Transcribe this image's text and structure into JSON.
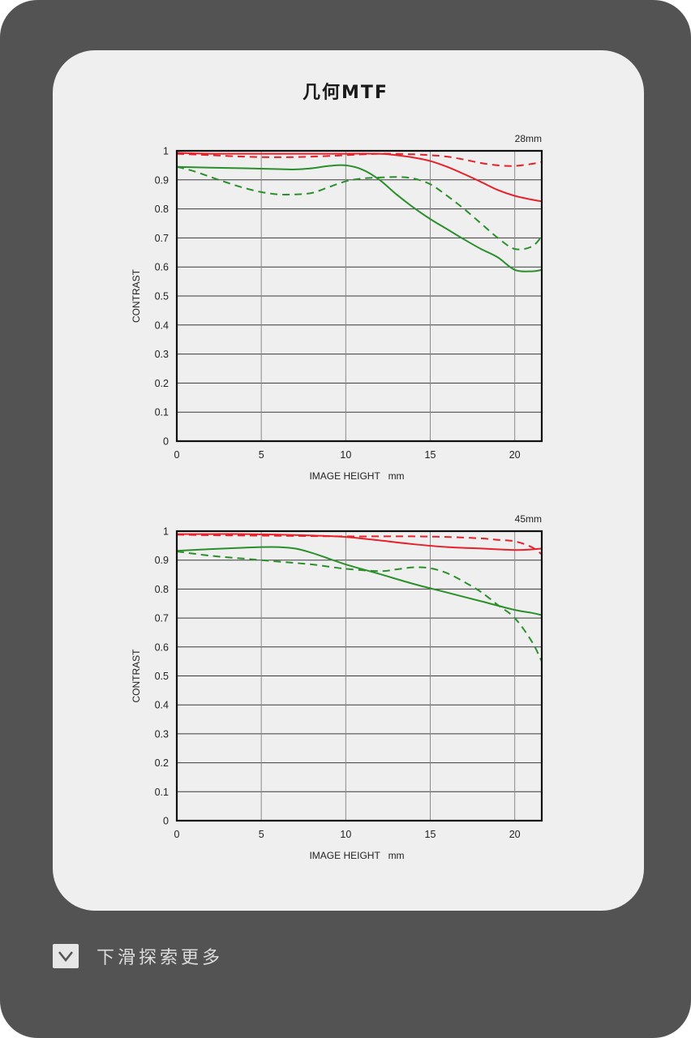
{
  "page_title": "几何MTF",
  "footer": {
    "label": "下滑探索更多",
    "icon": "chevron-down-icon"
  },
  "colors": {
    "sagittal_or_low": "#e8202a",
    "green": "#2b8f2b",
    "frame": "#535353",
    "card": "#efefef"
  },
  "chart_data": [
    {
      "type": "line",
      "title": "28mm",
      "xlabel": "IMAGE HEIGHT   mm",
      "ylabel": "CONTRAST",
      "xlim": [
        0,
        21.6
      ],
      "ylim": [
        0,
        1
      ],
      "xticks": [
        "0",
        "5",
        "10",
        "15",
        "20"
      ],
      "yticks": [
        "0",
        "0.1",
        "0.2",
        "0.3",
        "0.4",
        "0.5",
        "0.6",
        "0.7",
        "0.8",
        "0.9",
        "1"
      ],
      "grid": true,
      "series": [
        {
          "color": "#e8202a",
          "dash": false,
          "x": [
            0,
            2,
            4,
            6,
            8,
            10,
            12,
            13,
            14,
            15,
            16,
            17,
            18,
            19,
            20,
            21,
            21.6
          ],
          "y": [
            0.993,
            0.99,
            0.99,
            0.99,
            0.99,
            0.99,
            0.99,
            0.985,
            0.977,
            0.965,
            0.945,
            0.92,
            0.893,
            0.865,
            0.845,
            0.832,
            0.826
          ]
        },
        {
          "color": "#e8202a",
          "dash": true,
          "x": [
            0,
            2,
            4,
            6,
            8,
            10,
            12,
            14,
            15,
            16,
            17,
            18,
            19,
            20,
            21,
            21.6
          ],
          "y": [
            0.99,
            0.985,
            0.98,
            0.978,
            0.98,
            0.985,
            0.99,
            0.988,
            0.985,
            0.98,
            0.97,
            0.958,
            0.95,
            0.948,
            0.955,
            0.962
          ]
        },
        {
          "color": "#2b8f2b",
          "dash": false,
          "x": [
            0,
            2,
            4,
            6,
            7,
            8,
            9,
            10,
            11,
            12,
            13,
            14,
            15,
            16,
            17,
            18,
            19,
            20,
            21,
            21.6
          ],
          "y": [
            0.945,
            0.942,
            0.94,
            0.937,
            0.936,
            0.94,
            0.948,
            0.95,
            0.935,
            0.9,
            0.85,
            0.805,
            0.765,
            0.73,
            0.695,
            0.662,
            0.633,
            0.59,
            0.585,
            0.59
          ]
        },
        {
          "color": "#2b8f2b",
          "dash": true,
          "x": [
            0,
            1,
            2,
            3,
            4,
            5,
            6,
            7,
            8,
            9,
            10,
            11,
            12,
            13,
            14,
            15,
            16,
            17,
            18,
            19,
            20,
            21,
            21.6
          ],
          "y": [
            0.945,
            0.93,
            0.91,
            0.89,
            0.872,
            0.858,
            0.85,
            0.85,
            0.855,
            0.875,
            0.895,
            0.905,
            0.908,
            0.91,
            0.905,
            0.885,
            0.845,
            0.8,
            0.75,
            0.7,
            0.662,
            0.67,
            0.705
          ]
        }
      ]
    },
    {
      "type": "line",
      "title": "45mm",
      "xlabel": "IMAGE HEIGHT   mm",
      "ylabel": "CONTRAST",
      "xlim": [
        0,
        21.6
      ],
      "ylim": [
        0,
        1
      ],
      "xticks": [
        "0",
        "5",
        "10",
        "15",
        "20"
      ],
      "yticks": [
        "0",
        "0.1",
        "0.2",
        "0.3",
        "0.4",
        "0.5",
        "0.6",
        "0.7",
        "0.8",
        "0.9",
        "1"
      ],
      "grid": true,
      "series": [
        {
          "color": "#e8202a",
          "dash": false,
          "x": [
            0,
            2,
            4,
            6,
            8,
            10,
            12,
            14,
            16,
            18,
            20,
            21,
            21.6
          ],
          "y": [
            0.99,
            0.99,
            0.99,
            0.988,
            0.985,
            0.98,
            0.968,
            0.955,
            0.945,
            0.94,
            0.935,
            0.937,
            0.94
          ]
        },
        {
          "color": "#e8202a",
          "dash": true,
          "x": [
            0,
            2,
            4,
            6,
            8,
            10,
            12,
            14,
            16,
            18,
            19,
            20,
            21,
            21.6
          ],
          "y": [
            0.988,
            0.986,
            0.985,
            0.984,
            0.983,
            0.982,
            0.982,
            0.982,
            0.98,
            0.975,
            0.97,
            0.965,
            0.945,
            0.92
          ]
        },
        {
          "color": "#2b8f2b",
          "dash": false,
          "x": [
            0,
            2,
            4,
            5,
            6,
            7,
            8,
            9,
            10,
            12,
            14,
            16,
            18,
            20,
            21,
            21.6
          ],
          "y": [
            0.932,
            0.938,
            0.943,
            0.945,
            0.945,
            0.94,
            0.925,
            0.905,
            0.885,
            0.852,
            0.818,
            0.788,
            0.758,
            0.728,
            0.718,
            0.71
          ]
        },
        {
          "color": "#2b8f2b",
          "dash": true,
          "x": [
            0,
            2,
            4,
            6,
            8,
            10,
            12,
            13,
            14,
            15,
            16,
            17,
            18,
            19,
            20,
            21,
            21.6
          ],
          "y": [
            0.93,
            0.915,
            0.905,
            0.895,
            0.885,
            0.87,
            0.862,
            0.868,
            0.875,
            0.872,
            0.855,
            0.825,
            0.79,
            0.745,
            0.7,
            0.62,
            0.55
          ]
        }
      ]
    }
  ]
}
